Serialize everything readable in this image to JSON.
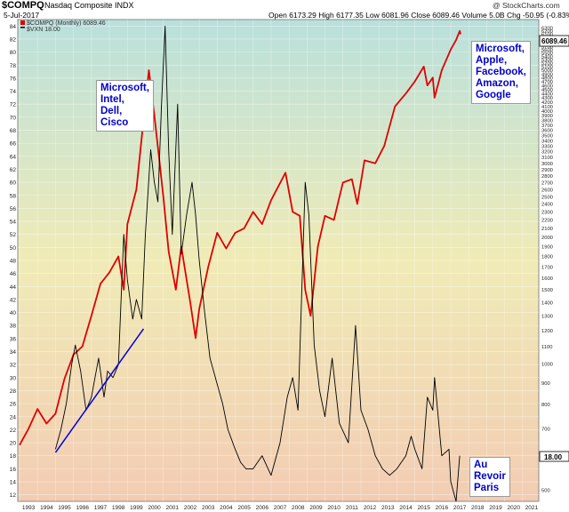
{
  "header": {
    "symbol": "$COMPQ",
    "name": "Nasdaq Composite INDX",
    "date": "5-Jul-2017",
    "ohlc": "Open 6173.29  High 6177.35  Low 6081.96  Close 6089.46  Volume 5.0B  Chg -50.95 (-0.83%)",
    "watermark": "@ StockCharts.com",
    "legend_main": "$COMPQ (Monthly) 6089.46",
    "legend_secondary": "$VXN 18.00"
  },
  "annotations": {
    "left": [
      "Microsoft,",
      "Intel,",
      "Dell,",
      "Cisco"
    ],
    "right": [
      "Microsoft,",
      "Apple,",
      "Facebook,",
      "Amazon,",
      "Google"
    ],
    "bottom": [
      "Au",
      "Revoir",
      "Paris"
    ]
  },
  "badges": {
    "price": "6089.46",
    "vxn": "18.00"
  },
  "colors": {
    "price": "#e00000",
    "vxn": "#000000",
    "trendline": "#0000dd",
    "bg_top": "#b9e0dc",
    "bg_mid": "#f0ebb6",
    "bg_bottom": "#f2ccb3"
  },
  "chart_data": {
    "type": "line",
    "title": "$COMPQ Nasdaq Composite INDX",
    "x_tick_labels": [
      "1993",
      "1994",
      "1995",
      "1996",
      "1997",
      "1998",
      "1999",
      "2000",
      "2001",
      "2002",
      "2003",
      "2004",
      "2005",
      "2006",
      "2007",
      "2008",
      "2009",
      "2010",
      "2011",
      "2012",
      "2013",
      "2014",
      "2015",
      "2016",
      "2017",
      "2018",
      "2019",
      "2020",
      "2021"
    ],
    "xlim": [
      1992.9,
      2021.9
    ],
    "left_axis": {
      "label": "$VXN",
      "ticks": [
        12,
        14,
        16,
        18,
        20,
        22,
        24,
        26,
        28,
        30,
        32,
        34,
        36,
        38,
        40,
        42,
        44,
        46,
        48,
        50,
        52,
        54,
        56,
        58,
        60,
        62,
        64,
        66,
        68,
        70,
        72,
        74,
        76,
        78,
        80,
        82,
        84
      ],
      "range": [
        11,
        85
      ]
    },
    "right_axis": {
      "label": "$COMPQ",
      "scale": "log",
      "ticks": [
        500,
        600,
        700,
        800,
        900,
        1000,
        1100,
        1200,
        1300,
        1400,
        1500,
        1600,
        1700,
        1800,
        1900,
        2000,
        2100,
        2200,
        2300,
        2400,
        2500,
        2600,
        2700,
        2800,
        2900,
        3000,
        3100,
        3200,
        3300,
        3400,
        3500,
        3600,
        3700,
        3800,
        3900,
        4000,
        4100,
        4200,
        4300,
        4400,
        4500,
        4600,
        4700,
        4800,
        4900,
        5000,
        5100,
        5200,
        5300,
        5400,
        5500,
        5600,
        5700,
        5800,
        5900,
        6000,
        6100,
        6200,
        6300
      ],
      "range": [
        470,
        6600
      ]
    },
    "series": [
      {
        "name": "$COMPQ (Monthly) 6089.46",
        "axis": "right",
        "points": [
          [
            1993.0,
            640
          ],
          [
            1993.5,
            700
          ],
          [
            1994.0,
            780
          ],
          [
            1994.5,
            720
          ],
          [
            1995.0,
            760
          ],
          [
            1995.5,
            920
          ],
          [
            1996.0,
            1050
          ],
          [
            1996.5,
            1100
          ],
          [
            1997.0,
            1300
          ],
          [
            1997.5,
            1550
          ],
          [
            1998.0,
            1650
          ],
          [
            1998.5,
            1800
          ],
          [
            1998.8,
            1500
          ],
          [
            1999.0,
            2150
          ],
          [
            1999.5,
            2600
          ],
          [
            1999.9,
            3800
          ],
          [
            2000.2,
            5000
          ],
          [
            2000.5,
            3900
          ],
          [
            2000.8,
            3000
          ],
          [
            2001.0,
            2500
          ],
          [
            2001.3,
            1850
          ],
          [
            2001.7,
            1500
          ],
          [
            2002.0,
            1900
          ],
          [
            2002.5,
            1400
          ],
          [
            2002.8,
            1150
          ],
          [
            2003.0,
            1350
          ],
          [
            2003.5,
            1700
          ],
          [
            2004.0,
            2050
          ],
          [
            2004.5,
            1880
          ],
          [
            2005.0,
            2050
          ],
          [
            2005.5,
            2100
          ],
          [
            2006.0,
            2300
          ],
          [
            2006.5,
            2150
          ],
          [
            2007.0,
            2450
          ],
          [
            2007.8,
            2850
          ],
          [
            2008.2,
            2300
          ],
          [
            2008.6,
            2250
          ],
          [
            2008.9,
            1500
          ],
          [
            2009.2,
            1300
          ],
          [
            2009.6,
            1900
          ],
          [
            2010.0,
            2250
          ],
          [
            2010.5,
            2200
          ],
          [
            2011.0,
            2700
          ],
          [
            2011.5,
            2750
          ],
          [
            2011.8,
            2400
          ],
          [
            2012.2,
            3050
          ],
          [
            2012.8,
            3000
          ],
          [
            2013.3,
            3300
          ],
          [
            2013.9,
            4100
          ],
          [
            2014.5,
            4400
          ],
          [
            2015.0,
            4700
          ],
          [
            2015.5,
            5100
          ],
          [
            2015.7,
            4600
          ],
          [
            2016.0,
            4800
          ],
          [
            2016.1,
            4300
          ],
          [
            2016.5,
            5000
          ],
          [
            2017.0,
            5600
          ],
          [
            2017.3,
            5900
          ],
          [
            2017.5,
            6200
          ],
          [
            2017.55,
            6089.46
          ]
        ]
      },
      {
        "name": "$VXN 18.00",
        "axis": "left",
        "points": [
          [
            1995.0,
            19
          ],
          [
            1995.3,
            22
          ],
          [
            1995.6,
            26
          ],
          [
            1995.9,
            32
          ],
          [
            1996.1,
            35
          ],
          [
            1996.4,
            31
          ],
          [
            1996.7,
            25
          ],
          [
            1997.0,
            27
          ],
          [
            1997.4,
            33
          ],
          [
            1997.7,
            27
          ],
          [
            1997.9,
            31
          ],
          [
            1998.2,
            30
          ],
          [
            1998.5,
            32
          ],
          [
            1998.8,
            52
          ],
          [
            1999.0,
            45
          ],
          [
            1999.3,
            39
          ],
          [
            1999.5,
            42
          ],
          [
            1999.8,
            39
          ],
          [
            2000.0,
            52
          ],
          [
            2000.3,
            65
          ],
          [
            2000.5,
            60
          ],
          [
            2000.7,
            57
          ],
          [
            2000.9,
            72
          ],
          [
            2001.1,
            84
          ],
          [
            2001.3,
            65
          ],
          [
            2001.5,
            52
          ],
          [
            2001.8,
            72
          ],
          [
            2002.0,
            49
          ],
          [
            2002.3,
            55
          ],
          [
            2002.6,
            60
          ],
          [
            2002.8,
            55
          ],
          [
            2003.0,
            48
          ],
          [
            2003.3,
            40
          ],
          [
            2003.6,
            33
          ],
          [
            2004.0,
            29
          ],
          [
            2004.3,
            26
          ],
          [
            2004.6,
            22
          ],
          [
            2005.0,
            19
          ],
          [
            2005.3,
            17
          ],
          [
            2005.6,
            16
          ],
          [
            2006.0,
            16
          ],
          [
            2006.5,
            18
          ],
          [
            2007.0,
            15
          ],
          [
            2007.5,
            20
          ],
          [
            2007.9,
            27
          ],
          [
            2008.2,
            30
          ],
          [
            2008.5,
            25
          ],
          [
            2008.9,
            60
          ],
          [
            2009.1,
            55
          ],
          [
            2009.4,
            35
          ],
          [
            2009.7,
            28
          ],
          [
            2010.0,
            24
          ],
          [
            2010.4,
            33
          ],
          [
            2010.8,
            23
          ],
          [
            2011.3,
            20
          ],
          [
            2011.7,
            38
          ],
          [
            2012.0,
            25
          ],
          [
            2012.4,
            22
          ],
          [
            2012.8,
            18
          ],
          [
            2013.2,
            16
          ],
          [
            2013.6,
            15
          ],
          [
            2014.0,
            16
          ],
          [
            2014.5,
            18
          ],
          [
            2014.8,
            21
          ],
          [
            2015.0,
            19
          ],
          [
            2015.4,
            16
          ],
          [
            2015.7,
            27
          ],
          [
            2016.0,
            25
          ],
          [
            2016.1,
            30
          ],
          [
            2016.5,
            18
          ],
          [
            2016.9,
            19
          ],
          [
            2017.0,
            14
          ],
          [
            2017.3,
            11
          ],
          [
            2017.5,
            18
          ]
        ]
      }
    ],
    "trendline": {
      "axis": "left",
      "from": [
        1995.0,
        18.5
      ],
      "to": [
        1999.9,
        37.5
      ]
    }
  }
}
